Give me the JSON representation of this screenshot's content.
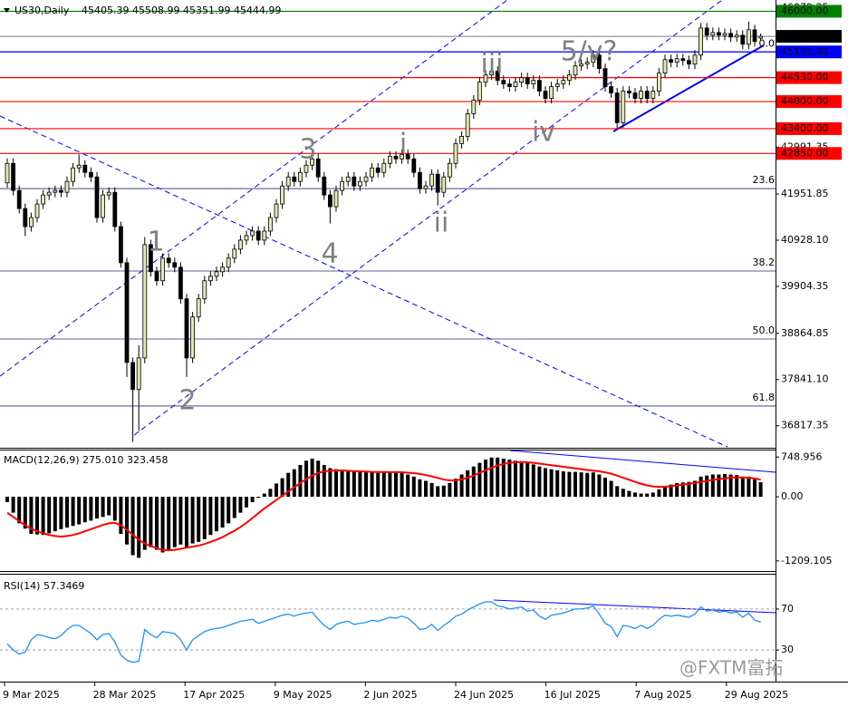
{
  "chart_data": [
    {
      "type": "candlestick",
      "title": "US30,Daily",
      "subtitle": "45405.39 45508.99 45351.99 45444.99",
      "up_color": "#dfe9b0",
      "down_color": "#000000",
      "wick_color": "#000000",
      "open": [
        42200,
        42630,
        42030,
        41630,
        41230,
        41430,
        41730,
        41930,
        41990,
        42030,
        41990,
        42230,
        42530,
        42590,
        42430,
        42330,
        41430,
        41930,
        41990,
        41230,
        40430,
        38220,
        37620,
        38320,
        40830,
        40230,
        40030,
        40530,
        40430,
        40330,
        39630,
        38320,
        39230,
        39630,
        40030,
        40130,
        40230,
        40330,
        40530,
        40730,
        40930,
        41030,
        41130,
        40930,
        41130,
        41430,
        41730,
        42130,
        42330,
        42230,
        42430,
        42590,
        42730,
        42330,
        41930,
        41670,
        42030,
        42230,
        42330,
        42130,
        42230,
        42330,
        42530,
        42430,
        42630,
        42790,
        42730,
        42830,
        42730,
        42430,
        42070,
        42130,
        42390,
        41990,
        42330,
        42630,
        43070,
        43230,
        43730,
        44030,
        44430,
        44590,
        44670,
        44470,
        44390,
        44330,
        44430,
        44530,
        44390,
        44470,
        44230,
        44070,
        44330,
        44390,
        44470,
        44590,
        44790,
        44830,
        44870,
        45030,
        44730,
        44330,
        44190,
        43530,
        44230,
        44190,
        44070,
        44230,
        44070,
        44230,
        44630,
        44930,
        44870,
        44950,
        44910,
        44830,
        45030,
        45630,
        45470,
        45530,
        45470,
        45510,
        45430,
        45470,
        45270,
        45590,
        45405.39
      ],
      "high": [
        42740,
        42740,
        42140,
        41740,
        41540,
        41840,
        42040,
        42100,
        42140,
        42140,
        42340,
        42640,
        42830,
        42700,
        42540,
        42440,
        42040,
        42100,
        42100,
        41340,
        40540,
        38330,
        38600,
        41000,
        40940,
        40340,
        40640,
        40640,
        40540,
        40440,
        39740,
        39340,
        39740,
        40140,
        40240,
        40340,
        40440,
        40640,
        40840,
        41040,
        41140,
        41240,
        41240,
        41240,
        41540,
        41840,
        42240,
        42440,
        42440,
        42540,
        42700,
        42900,
        42840,
        42440,
        42040,
        42140,
        42340,
        42440,
        42440,
        42340,
        42440,
        42640,
        42640,
        42740,
        42900,
        42900,
        42940,
        42940,
        42840,
        42540,
        42240,
        42500,
        42500,
        42440,
        42740,
        43180,
        43340,
        43840,
        44140,
        44540,
        44700,
        44900,
        44780,
        44580,
        44500,
        44540,
        44640,
        44640,
        44580,
        44580,
        44340,
        44440,
        44500,
        44580,
        44700,
        44900,
        44940,
        44980,
        45140,
        45140,
        44840,
        44440,
        44300,
        44340,
        44340,
        44300,
        44340,
        44340,
        44340,
        44740,
        45040,
        45040,
        45060,
        45060,
        45020,
        45140,
        45740,
        45740,
        45640,
        45640,
        45620,
        45620,
        45580,
        45580,
        45770,
        45700,
        45508.99
      ],
      "low": [
        42090,
        41920,
        41520,
        41020,
        41120,
        41320,
        41620,
        41820,
        41880,
        41880,
        41880,
        42120,
        42420,
        42320,
        42220,
        41320,
        41320,
        41820,
        41120,
        40320,
        37900,
        36460,
        36700,
        38200,
        40120,
        39920,
        39920,
        40320,
        40220,
        39520,
        37900,
        38210,
        39120,
        39520,
        39920,
        40020,
        40120,
        40220,
        40420,
        40620,
        40820,
        40920,
        40820,
        40820,
        41020,
        41320,
        41620,
        42020,
        42120,
        42120,
        42320,
        42480,
        42220,
        41820,
        41300,
        41560,
        41920,
        42120,
        42020,
        42020,
        42120,
        42220,
        42320,
        42320,
        42520,
        42620,
        42620,
        42620,
        42320,
        41960,
        41960,
        42020,
        41700,
        41880,
        42220,
        42520,
        42960,
        43120,
        43620,
        43920,
        44320,
        44480,
        44360,
        44280,
        44220,
        44220,
        44320,
        44280,
        44280,
        44120,
        43960,
        43960,
        44220,
        44280,
        44360,
        44480,
        44680,
        44720,
        44760,
        44620,
        44220,
        44080,
        43400,
        43420,
        44080,
        43960,
        43960,
        43960,
        43960,
        44120,
        44520,
        44760,
        44760,
        44800,
        44720,
        44720,
        44920,
        45360,
        45360,
        45360,
        45360,
        45320,
        45320,
        45160,
        45160,
        45220,
        45351.99
      ],
      "close": [
        42630,
        42030,
        41630,
        41230,
        41430,
        41730,
        41930,
        41990,
        42030,
        41990,
        42230,
        42530,
        42590,
        42430,
        42330,
        41430,
        41930,
        41990,
        41230,
        40430,
        38220,
        37620,
        38320,
        40830,
        40230,
        40030,
        40530,
        40430,
        40330,
        39630,
        38320,
        39230,
        39630,
        40030,
        40130,
        40230,
        40330,
        40530,
        40730,
        40930,
        41030,
        41130,
        40930,
        41130,
        41430,
        41730,
        42130,
        42330,
        42230,
        42430,
        42590,
        42730,
        42330,
        41930,
        41670,
        42030,
        42230,
        42330,
        42130,
        42230,
        42330,
        42530,
        42430,
        42630,
        42790,
        42730,
        42830,
        42730,
        42430,
        42070,
        42130,
        42390,
        41990,
        42330,
        42630,
        43070,
        43230,
        43730,
        44030,
        44430,
        44590,
        44670,
        44470,
        44390,
        44330,
        44430,
        44530,
        44390,
        44470,
        44230,
        44070,
        44330,
        44390,
        44470,
        44590,
        44790,
        44830,
        44870,
        45030,
        44730,
        44330,
        44190,
        43530,
        44230,
        44190,
        44070,
        44230,
        44070,
        44230,
        44630,
        44930,
        44870,
        44950,
        44910,
        44830,
        45030,
        45630,
        45470,
        45530,
        45470,
        45510,
        45430,
        45470,
        45270,
        45590,
        45330,
        45444.99
      ],
      "ylim": [
        36330,
        46250
      ],
      "yticks": [
        46079.25,
        42991.35,
        41951.85,
        {
          "value": 40928.1,
          "label": "40928.10"
        },
        39904.35,
        38864.85,
        {
          "value": 37841.1,
          "label": "37841.10"
        },
        36817.35
      ],
      "last_price": 45444.99,
      "last_price_color": "#000000",
      "levels": [
        {
          "value": 46000,
          "label": "46000.00",
          "color": "#008000"
        },
        {
          "value": 45100,
          "label": "45100.00",
          "color": "#0000ff"
        },
        {
          "value": 44530,
          "label": "44530.00",
          "color": "#ff0000"
        },
        {
          "value": 44000,
          "label": "44000.00",
          "color": "#ff0000"
        },
        {
          "value": 43400,
          "label": "43400.00",
          "color": "#ff0000"
        },
        {
          "value": 42850,
          "label": "42850.00",
          "color": "#ff0000"
        }
      ],
      "fib_color": "#2b2b7a",
      "fib_levels": [
        {
          "label": "0.0",
          "price": 45100
        },
        {
          "label": "23.6",
          "price": 42072
        },
        {
          "label": "38.2",
          "price": 40246
        },
        {
          "label": "50.0",
          "price": 38740
        },
        {
          "label": "61.8",
          "price": 37255
        }
      ],
      "wave_labels": [
        "1",
        "2",
        "3",
        "4",
        "i",
        "ii",
        "iii",
        "iv",
        "5/v?"
      ],
      "x_labels": [
        "9 Mar 2025",
        "28 Mar 2025",
        "17 Apr 2025",
        "9 May 2025",
        "2 Jun 2025",
        "24 Jun 2025",
        "16 Jul 2025",
        "7 Aug 2025",
        "29 Aug 2025"
      ],
      "watermark": "@FXTM富拓"
    },
    {
      "type": "macd",
      "title": "MACD(12,26,9) 275.010 323.458",
      "ylim": [
        -1400,
        890
      ],
      "yticks": [
        748.956,
        {
          "value": 0,
          "label": "0.00"
        },
        -1209.105
      ],
      "bars": {
        "color": "#000000",
        "values": [
          -100,
          -300,
          -500,
          -600,
          -700,
          -710,
          -720,
          -690,
          -650,
          -610,
          -580,
          -550,
          -520,
          -480,
          -450,
          -410,
          -380,
          -350,
          -450,
          -700,
          -900,
          -1100,
          -1150,
          -1000,
          -950,
          -1000,
          -1050,
          -1000,
          -950,
          -900,
          -950,
          -880,
          -850,
          -800,
          -720,
          -650,
          -580,
          -500,
          -400,
          -300,
          -200,
          -100,
          -20,
          60,
          150,
          250,
          350,
          450,
          520,
          600,
          680,
          720,
          680,
          600,
          540,
          520,
          510,
          500,
          480,
          470,
          460,
          470,
          450,
          460,
          470,
          460,
          450,
          420,
          380,
          330,
          300,
          260,
          200,
          210,
          260,
          340,
          420,
          500,
          570,
          640,
          700,
          740,
          740,
          720,
          700,
          680,
          670,
          640,
          610,
          570,
          540,
          520,
          500,
          480,
          470,
          470,
          460,
          450,
          460,
          420,
          360,
          300,
          200,
          150,
          110,
          80,
          60,
          60,
          80,
          140,
          200,
          230,
          260,
          270,
          280,
          300,
          380,
          400,
          420,
          420,
          430,
          420,
          410,
          380,
          380,
          330,
          275.01
        ]
      },
      "line": {
        "color": "#ff0000",
        "values": [
          -300,
          -380,
          -460,
          -540,
          -600,
          -650,
          -690,
          -720,
          -740,
          -750,
          -740,
          -720,
          -690,
          -650,
          -610,
          -570,
          -530,
          -500,
          -490,
          -540,
          -620,
          -720,
          -810,
          -880,
          -930,
          -970,
          -1000,
          -1010,
          -1000,
          -980,
          -960,
          -940,
          -920,
          -890,
          -850,
          -810,
          -760,
          -700,
          -640,
          -570,
          -490,
          -400,
          -310,
          -220,
          -140,
          -60,
          20,
          100,
          180,
          260,
          330,
          400,
          450,
          480,
          490,
          495,
          495,
          490,
          485,
          480,
          475,
          470,
          468,
          466,
          465,
          464,
          462,
          455,
          445,
          430,
          410,
          385,
          355,
          325,
          310,
          310,
          330,
          360,
          400,
          450,
          500,
          550,
          590,
          620,
          640,
          650,
          655,
          650,
          640,
          625,
          610,
          595,
          580,
          565,
          550,
          535,
          520,
          505,
          495,
          480,
          460,
          435,
          400,
          360,
          320,
          280,
          245,
          215,
          195,
          185,
          190,
          200,
          215,
          230,
          245,
          260,
          280,
          300,
          320,
          335,
          350,
          360,
          365,
          365,
          360,
          345,
          323.458
        ]
      }
    },
    {
      "type": "line",
      "title": "RSI(14) 57.3469",
      "color": "#1e90ff",
      "ylim": [
        0,
        100
      ],
      "yticks": [
        70,
        30
      ],
      "grid": true,
      "values": [
        36,
        30,
        26,
        28,
        40,
        45,
        44,
        42,
        41,
        44,
        50,
        54,
        54,
        50,
        46,
        40,
        45,
        46,
        38,
        25,
        20,
        18,
        19,
        50,
        45,
        42,
        48,
        47,
        46,
        40,
        30,
        40,
        44,
        48,
        50,
        51,
        52,
        54,
        56,
        58,
        59,
        60,
        56,
        58,
        60,
        62,
        64,
        65,
        63,
        65,
        66,
        67,
        60,
        54,
        50,
        55,
        57,
        58,
        55,
        56,
        57,
        59,
        58,
        60,
        62,
        61,
        63,
        61,
        56,
        50,
        51,
        55,
        49,
        54,
        58,
        63,
        65,
        69,
        72,
        75,
        77,
        77,
        73,
        72,
        70,
        71,
        72,
        68,
        69,
        63,
        60,
        64,
        65,
        66,
        68,
        70,
        70,
        71,
        73,
        65,
        56,
        53,
        43,
        54,
        53,
        51,
        54,
        51,
        54,
        60,
        64,
        63,
        64,
        63,
        62,
        65,
        72,
        68,
        69,
        67,
        68,
        66,
        67,
        62,
        66,
        59,
        57.3469
      ]
    }
  ]
}
